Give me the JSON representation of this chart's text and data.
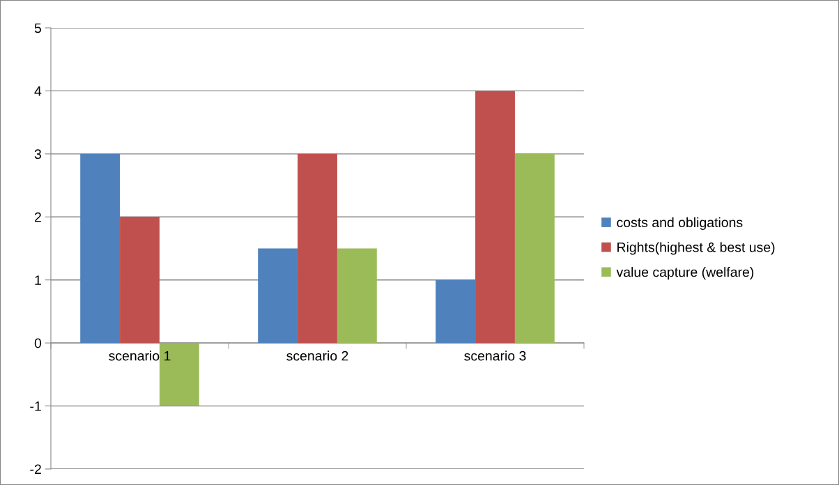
{
  "chart_data": {
    "type": "bar",
    "categories": [
      "scenario 1",
      "scenario 2",
      "scenario 3"
    ],
    "series": [
      {
        "name": "costs and obligations",
        "color": "#4f81bd",
        "values": [
          3,
          1.5,
          1
        ]
      },
      {
        "name": "Rights(highest & best use)",
        "color": "#c0504d",
        "values": [
          2,
          3,
          4
        ]
      },
      {
        "name": "value capture (welfare)",
        "color": "#9bbb59",
        "values": [
          -1,
          1.5,
          3
        ]
      }
    ],
    "ylim": [
      -2,
      5
    ],
    "yticks": [
      -2,
      -1,
      0,
      1,
      2,
      3,
      4,
      5
    ],
    "grid": "y",
    "legend": "right"
  }
}
